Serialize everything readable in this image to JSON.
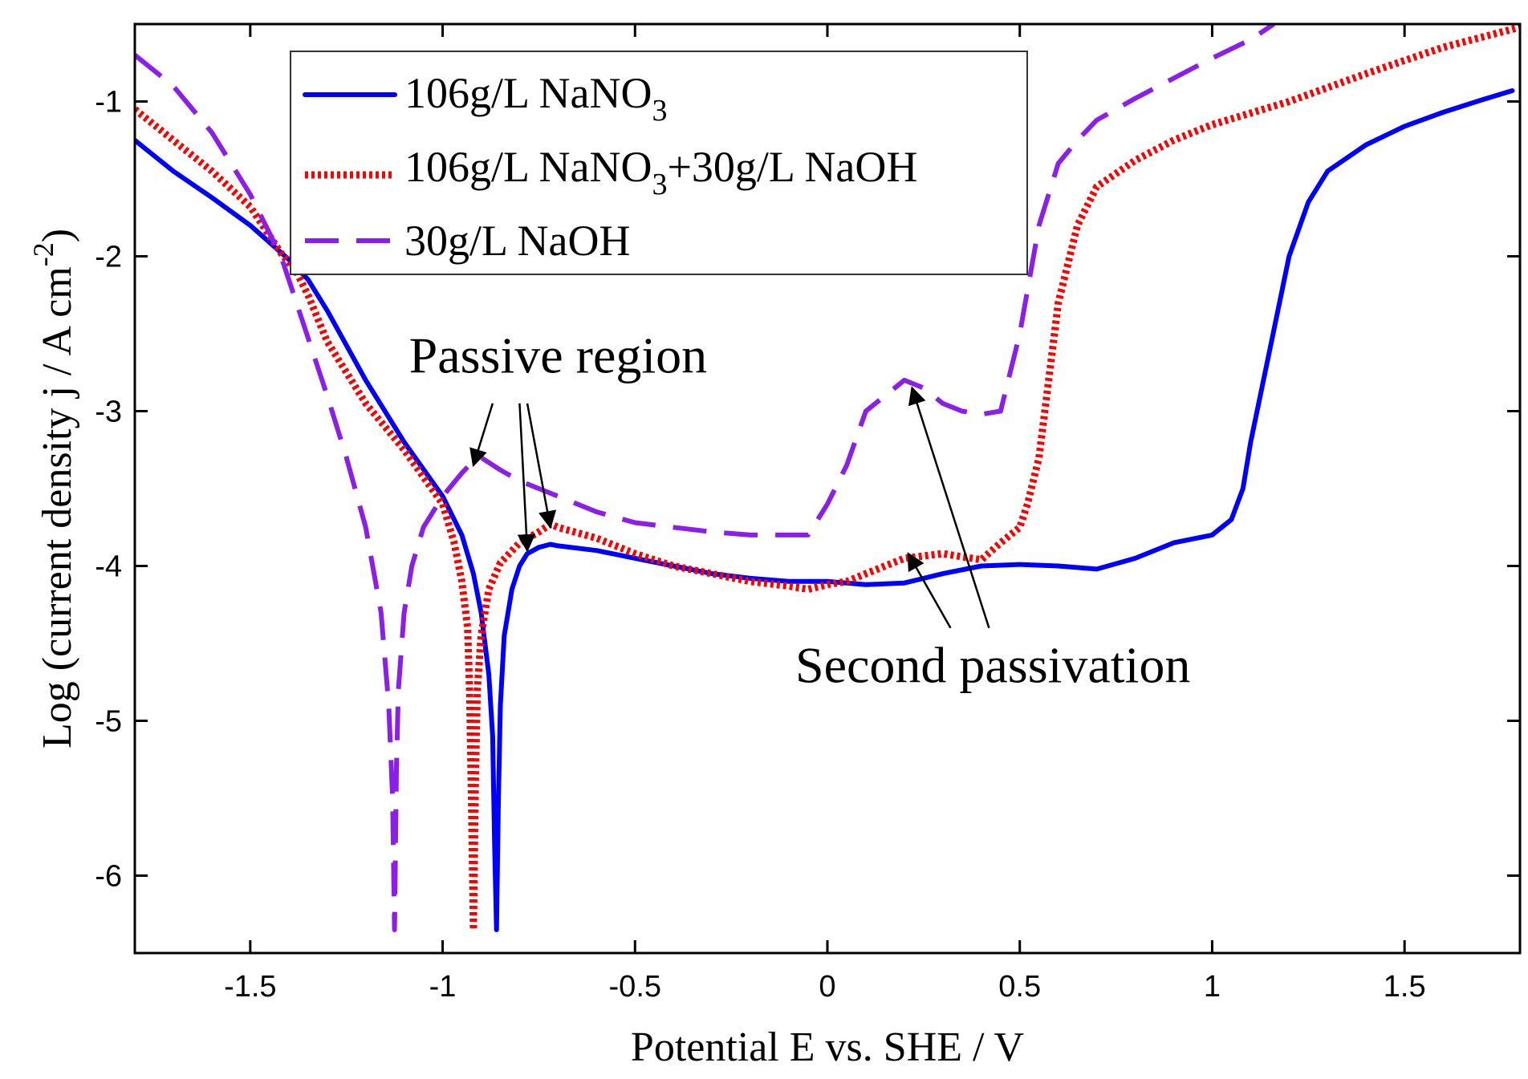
{
  "chart_data": {
    "type": "line",
    "title": "",
    "xlabel": "Potential E vs. SHE / V",
    "ylabel": {
      "main": "Log (current density j / A cm",
      "sup": "-2",
      "close": ")"
    },
    "xlim": [
      -1.8,
      1.8
    ],
    "ylim": [
      -6.5,
      -0.5
    ],
    "xticks": [
      -1.5,
      -1,
      -0.5,
      0,
      0.5,
      1,
      1.5
    ],
    "xtick_labels": [
      "-1.5",
      "-1",
      "-0.5",
      "0",
      "0.5",
      "1",
      "1.5"
    ],
    "yticks": [
      -6,
      -5,
      -4,
      -3,
      -2,
      -1
    ],
    "ytick_labels": [
      "-6",
      "-5",
      "-4",
      "-3",
      "-2",
      "-1"
    ],
    "grid": false,
    "legend_position": "top-left",
    "series": [
      {
        "name": "106g/L NaNO3",
        "legend": {
          "a": "106g/L NaNO",
          "a_sub": "3",
          "b": "",
          "b_sub": "",
          "c": ""
        },
        "color": "#0000ff",
        "style": "solid",
        "x": [
          -1.8,
          -1.7,
          -1.6,
          -1.5,
          -1.4,
          -1.35,
          -1.3,
          -1.2,
          -1.1,
          -1.0,
          -0.95,
          -0.92,
          -0.9,
          -0.88,
          -0.87,
          -0.865,
          -0.86,
          -0.855,
          -0.85,
          -0.84,
          -0.82,
          -0.8,
          -0.78,
          -0.75,
          -0.72,
          -0.7,
          -0.6,
          -0.5,
          -0.4,
          -0.3,
          -0.2,
          -0.1,
          0.0,
          0.1,
          0.2,
          0.3,
          0.4,
          0.5,
          0.6,
          0.7,
          0.8,
          0.9,
          1.0,
          1.05,
          1.08,
          1.1,
          1.15,
          1.2,
          1.25,
          1.3,
          1.4,
          1.5,
          1.6,
          1.7,
          1.78
        ],
        "y": [
          -1.25,
          -1.45,
          -1.62,
          -1.8,
          -2.02,
          -2.15,
          -2.35,
          -2.8,
          -3.2,
          -3.55,
          -3.8,
          -4.05,
          -4.3,
          -4.7,
          -5.1,
          -5.8,
          -6.35,
          -5.5,
          -4.9,
          -4.45,
          -4.15,
          -4.0,
          -3.92,
          -3.88,
          -3.86,
          -3.87,
          -3.9,
          -3.95,
          -4.0,
          -4.05,
          -4.08,
          -4.1,
          -4.1,
          -4.12,
          -4.11,
          -4.05,
          -4.0,
          -3.99,
          -4.0,
          -4.02,
          -3.95,
          -3.85,
          -3.8,
          -3.7,
          -3.5,
          -3.2,
          -2.6,
          -2.0,
          -1.65,
          -1.45,
          -1.28,
          -1.16,
          -1.07,
          -0.99,
          -0.93
        ]
      },
      {
        "name": "106g/L NaNO3+30g/L NaOH",
        "legend": {
          "a": "106g/L NaNO",
          "a_sub": "3",
          "b": "+30g/L NaOH",
          "b_sub": "",
          "c": ""
        },
        "color": "#ff0000",
        "style": "dotted",
        "x": [
          -1.8,
          -1.7,
          -1.6,
          -1.5,
          -1.42,
          -1.38,
          -1.35,
          -1.3,
          -1.2,
          -1.1,
          -1.0,
          -0.97,
          -0.95,
          -0.935,
          -0.93,
          -0.925,
          -0.92,
          -0.915,
          -0.91,
          -0.9,
          -0.88,
          -0.85,
          -0.8,
          -0.75,
          -0.72,
          -0.7,
          -0.6,
          -0.5,
          -0.4,
          -0.3,
          -0.2,
          -0.1,
          -0.05,
          0.0,
          0.05,
          0.1,
          0.2,
          0.3,
          0.4,
          0.45,
          0.5,
          0.52,
          0.55,
          0.57,
          0.6,
          0.65,
          0.7,
          0.8,
          0.9,
          1.0,
          1.2,
          1.4,
          1.6,
          1.8
        ],
        "y": [
          -1.05,
          -1.25,
          -1.45,
          -1.68,
          -1.98,
          -2.1,
          -2.25,
          -2.55,
          -2.95,
          -3.25,
          -3.6,
          -3.85,
          -4.1,
          -4.4,
          -4.8,
          -5.5,
          -6.35,
          -5.4,
          -4.8,
          -4.45,
          -4.15,
          -3.98,
          -3.85,
          -3.78,
          -3.73,
          -3.75,
          -3.82,
          -3.92,
          -4.0,
          -4.05,
          -4.1,
          -4.13,
          -4.15,
          -4.12,
          -4.1,
          -4.05,
          -3.95,
          -3.92,
          -3.96,
          -3.85,
          -3.75,
          -3.6,
          -3.3,
          -2.9,
          -2.3,
          -1.8,
          -1.55,
          -1.38,
          -1.25,
          -1.15,
          -1.0,
          -0.82,
          -0.65,
          -0.52
        ]
      },
      {
        "name": "30g/L NaOH",
        "legend": {
          "a": "30g/L NaOH",
          "a_sub": "",
          "b": "",
          "b_sub": "",
          "c": ""
        },
        "color": "#8b1ee8",
        "style": "dashed",
        "x": [
          -1.8,
          -1.7,
          -1.6,
          -1.5,
          -1.42,
          -1.38,
          -1.3,
          -1.25,
          -1.2,
          -1.16,
          -1.14,
          -1.13,
          -1.125,
          -1.12,
          -1.115,
          -1.1,
          -1.08,
          -1.05,
          -1.0,
          -0.95,
          -0.92,
          -0.9,
          -0.85,
          -0.8,
          -0.75,
          -0.7,
          -0.6,
          -0.5,
          -0.4,
          -0.3,
          -0.2,
          -0.1,
          -0.05,
          0.0,
          0.05,
          0.1,
          0.15,
          0.2,
          0.25,
          0.3,
          0.35,
          0.4,
          0.45,
          0.5,
          0.55,
          0.6,
          0.65,
          0.7,
          0.8,
          0.9,
          1.0,
          1.1,
          1.16
        ],
        "y": [
          -0.7,
          -0.9,
          -1.2,
          -1.6,
          -2.0,
          -2.3,
          -2.9,
          -3.3,
          -3.75,
          -4.3,
          -4.9,
          -5.5,
          -6.35,
          -5.3,
          -4.8,
          -4.3,
          -4.0,
          -3.75,
          -3.55,
          -3.4,
          -3.32,
          -3.3,
          -3.38,
          -3.45,
          -3.5,
          -3.55,
          -3.65,
          -3.72,
          -3.75,
          -3.78,
          -3.8,
          -3.8,
          -3.8,
          -3.6,
          -3.35,
          -3.0,
          -2.9,
          -2.8,
          -2.85,
          -2.95,
          -3.0,
          -3.02,
          -3.0,
          -2.5,
          -1.8,
          -1.4,
          -1.25,
          -1.12,
          -0.98,
          -0.85,
          -0.72,
          -0.6,
          -0.5
        ]
      }
    ],
    "annotations": [
      {
        "text": "Passive region",
        "text_at": [
          -0.7,
          -2.75
        ],
        "arrows": [
          {
            "from": [
              -0.87,
              -2.95
            ],
            "to": [
              -0.92,
              -3.35
            ]
          },
          {
            "from": [
              -0.8,
              -2.95
            ],
            "to": [
              -0.78,
              -3.9
            ]
          },
          {
            "from": [
              -0.78,
              -2.95
            ],
            "to": [
              -0.72,
              -3.75
            ]
          }
        ]
      },
      {
        "text": "Second passivation",
        "text_at": [
          0.43,
          -4.75
        ],
        "arrows": [
          {
            "from": [
              0.32,
              -4.4
            ],
            "to": [
              0.21,
              -3.92
            ]
          },
          {
            "from": [
              0.42,
              -4.4
            ],
            "to": [
              0.22,
              -2.85
            ]
          }
        ]
      }
    ]
  }
}
